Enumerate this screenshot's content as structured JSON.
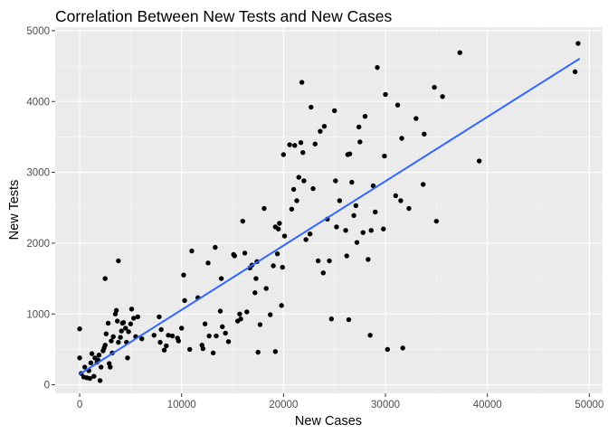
{
  "chart_data": {
    "type": "scatter",
    "title": "Correlation Between New Tests and New Cases",
    "xlabel": "New Cases",
    "ylabel": "New Tests",
    "xlim": [
      -2400,
      51300
    ],
    "ylim": [
      -120,
      5050
    ],
    "x_ticks": [
      0,
      10000,
      20000,
      30000,
      40000,
      50000
    ],
    "x_tick_labels": [
      "0",
      "10000",
      "20000",
      "30000",
      "40000",
      "50000"
    ],
    "y_ticks": [
      0,
      1000,
      2000,
      3000,
      4000,
      5000
    ],
    "y_tick_labels": [
      "0",
      "1000",
      "2000",
      "3000",
      "4000",
      "5000"
    ],
    "grid": true,
    "legend": "none",
    "colors": {
      "panel": "#ebebeb",
      "grid_major": "#ffffff",
      "point": "#000000",
      "trend": "#3366ff",
      "tick_label": "#4d4d4d",
      "tick_mark": "#333333"
    },
    "trend_line": {
      "x": [
        0,
        49000
      ],
      "y": [
        150,
        4600
      ]
    },
    "points": [
      [
        0,
        790
      ],
      [
        0,
        380
      ],
      [
        150,
        160
      ],
      [
        400,
        110
      ],
      [
        500,
        250
      ],
      [
        700,
        100
      ],
      [
        900,
        200
      ],
      [
        1000,
        90
      ],
      [
        1100,
        310
      ],
      [
        1200,
        440
      ],
      [
        1400,
        120
      ],
      [
        1500,
        380
      ],
      [
        1700,
        320
      ],
      [
        1800,
        350
      ],
      [
        1900,
        420
      ],
      [
        2000,
        60
      ],
      [
        2100,
        250
      ],
      [
        2300,
        480
      ],
      [
        2400,
        520
      ],
      [
        2500,
        560
      ],
      [
        2600,
        720
      ],
      [
        2800,
        870
      ],
      [
        2900,
        300
      ],
      [
        3000,
        250
      ],
      [
        3100,
        620
      ],
      [
        3200,
        450
      ],
      [
        3300,
        680
      ],
      [
        3500,
        1000
      ],
      [
        3600,
        1050
      ],
      [
        3700,
        900
      ],
      [
        3800,
        600
      ],
      [
        4000,
        670
      ],
      [
        4100,
        760
      ],
      [
        4200,
        870
      ],
      [
        4300,
        880
      ],
      [
        4500,
        800
      ],
      [
        4600,
        600
      ],
      [
        4700,
        380
      ],
      [
        4800,
        750
      ],
      [
        5000,
        860
      ],
      [
        5100,
        1070
      ],
      [
        5300,
        940
      ],
      [
        5500,
        680
      ],
      [
        5700,
        960
      ],
      [
        6100,
        650
      ],
      [
        2500,
        1500
      ],
      [
        3800,
        1750
      ],
      [
        7300,
        700
      ],
      [
        7800,
        960
      ],
      [
        7900,
        600
      ],
      [
        8000,
        780
      ],
      [
        8300,
        490
      ],
      [
        8500,
        550
      ],
      [
        8700,
        700
      ],
      [
        9100,
        690
      ],
      [
        9600,
        660
      ],
      [
        9700,
        620
      ],
      [
        10000,
        800
      ],
      [
        10200,
        1550
      ],
      [
        10300,
        1190
      ],
      [
        10800,
        500
      ],
      [
        11000,
        1890
      ],
      [
        11600,
        1230
      ],
      [
        12000,
        560
      ],
      [
        12100,
        510
      ],
      [
        12300,
        860
      ],
      [
        12600,
        1720
      ],
      [
        12700,
        690
      ],
      [
        13100,
        450
      ],
      [
        13300,
        1940
      ],
      [
        13400,
        690
      ],
      [
        13800,
        1040
      ],
      [
        13900,
        1500
      ],
      [
        14000,
        820
      ],
      [
        14300,
        730
      ],
      [
        14600,
        610
      ],
      [
        15100,
        1840
      ],
      [
        15200,
        1820
      ],
      [
        15500,
        900
      ],
      [
        15700,
        1000
      ],
      [
        15800,
        930
      ],
      [
        16000,
        2310
      ],
      [
        16200,
        1860
      ],
      [
        16400,
        1030
      ],
      [
        16700,
        1650
      ],
      [
        16900,
        1690
      ],
      [
        17200,
        1300
      ],
      [
        17300,
        1500
      ],
      [
        17400,
        1740
      ],
      [
        17500,
        460
      ],
      [
        17700,
        850
      ],
      [
        18100,
        2490
      ],
      [
        18300,
        1360
      ],
      [
        18700,
        990
      ],
      [
        19000,
        1680
      ],
      [
        19200,
        2230
      ],
      [
        19200,
        470
      ],
      [
        19400,
        1850
      ],
      [
        19500,
        2200
      ],
      [
        19600,
        2280
      ],
      [
        19800,
        1120
      ],
      [
        19900,
        1660
      ],
      [
        20000,
        3250
      ],
      [
        20100,
        2100
      ],
      [
        20600,
        3390
      ],
      [
        20800,
        2480
      ],
      [
        21000,
        2760
      ],
      [
        21100,
        3380
      ],
      [
        21300,
        2600
      ],
      [
        21500,
        2930
      ],
      [
        21700,
        3420
      ],
      [
        21800,
        4270
      ],
      [
        21900,
        3280
      ],
      [
        22000,
        2880
      ],
      [
        22200,
        2050
      ],
      [
        22600,
        2130
      ],
      [
        22700,
        3920
      ],
      [
        22900,
        2770
      ],
      [
        23100,
        3400
      ],
      [
        23400,
        1750
      ],
      [
        23600,
        3580
      ],
      [
        23900,
        1580
      ],
      [
        24000,
        3650
      ],
      [
        24300,
        2340
      ],
      [
        24500,
        1750
      ],
      [
        24700,
        930
      ],
      [
        25000,
        3870
      ],
      [
        25100,
        2880
      ],
      [
        25200,
        2230
      ],
      [
        25500,
        2600
      ],
      [
        26100,
        2180
      ],
      [
        26200,
        1820
      ],
      [
        26300,
        3250
      ],
      [
        26400,
        920
      ],
      [
        26500,
        3260
      ],
      [
        26700,
        2860
      ],
      [
        26900,
        2390
      ],
      [
        27100,
        2530
      ],
      [
        27200,
        2010
      ],
      [
        27400,
        3640
      ],
      [
        27500,
        3430
      ],
      [
        27800,
        2150
      ],
      [
        28000,
        3790
      ],
      [
        28300,
        1770
      ],
      [
        28500,
        700
      ],
      [
        28600,
        2180
      ],
      [
        28800,
        2810
      ],
      [
        29000,
        2440
      ],
      [
        29200,
        4480
      ],
      [
        29800,
        2200
      ],
      [
        29900,
        3230
      ],
      [
        30000,
        4100
      ],
      [
        30200,
        500
      ],
      [
        31000,
        2670
      ],
      [
        31200,
        3950
      ],
      [
        31500,
        2600
      ],
      [
        31600,
        3480
      ],
      [
        31700,
        520
      ],
      [
        32300,
        2490
      ],
      [
        33000,
        3760
      ],
      [
        33700,
        2830
      ],
      [
        33800,
        3540
      ],
      [
        34800,
        4200
      ],
      [
        35000,
        2310
      ],
      [
        35600,
        4070
      ],
      [
        37300,
        4690
      ],
      [
        39200,
        3160
      ],
      [
        48600,
        4420
      ],
      [
        48900,
        4820
      ]
    ]
  }
}
